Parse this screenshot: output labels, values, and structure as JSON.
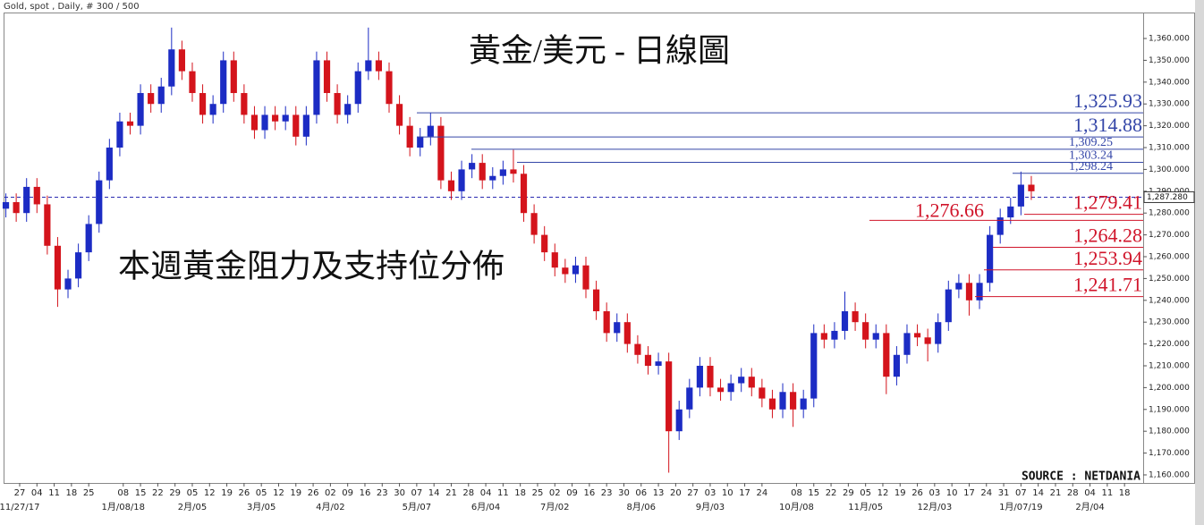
{
  "chart_data": {
    "type": "candlestick",
    "header": "Gold, spot , Daily, # 300 / 500",
    "title": "黃金/美元 - 日線圖",
    "subtitle": "本週黃金阻力及支持位分佈",
    "source": "SOURCE : NETDANIA",
    "up_color": "#1c2cc4",
    "down_color": "#d4141c",
    "x": [
      0,
      3,
      6,
      9,
      12,
      15,
      18,
      21,
      24,
      27,
      30,
      33,
      36,
      39,
      42,
      45,
      48,
      51,
      54,
      57,
      60,
      63,
      66,
      69,
      72,
      75,
      78,
      81,
      84,
      87,
      90,
      93,
      96,
      99,
      102,
      105,
      108,
      111,
      114,
      117,
      120,
      123,
      126,
      129,
      132,
      135,
      138,
      141,
      144,
      147,
      150,
      153,
      156,
      159,
      162,
      165,
      168,
      171,
      174,
      177,
      180,
      183,
      186,
      189,
      192,
      195,
      198,
      201,
      204,
      207,
      210,
      213,
      216,
      219,
      222,
      225,
      228,
      231,
      234,
      237,
      240,
      243,
      246,
      249,
      252,
      255,
      258,
      261,
      264,
      267,
      270,
      273,
      276,
      279,
      282,
      285,
      288,
      291,
      294,
      297
    ],
    "open": [
      1282,
      1285,
      1280,
      1292,
      1284,
      1265,
      1245,
      1250,
      1262,
      1275,
      1295,
      1310,
      1322,
      1320,
      1335,
      1330,
      1338,
      1355,
      1345,
      1335,
      1325,
      1330,
      1350,
      1335,
      1325,
      1318,
      1325,
      1322,
      1325,
      1315,
      1325,
      1350,
      1335,
      1325,
      1330,
      1345,
      1350,
      1345,
      1330,
      1320,
      1310,
      1315,
      1320,
      1295,
      1290,
      1300,
      1303,
      1295,
      1297,
      1300,
      1298,
      1280,
      1270,
      1262,
      1255,
      1252,
      1256,
      1245,
      1235,
      1225,
      1230,
      1220,
      1215,
      1210,
      1212,
      1180,
      1190,
      1200,
      1210,
      1200,
      1198,
      1202,
      1205,
      1200,
      1195,
      1190,
      1198,
      1190,
      1195,
      1225,
      1222,
      1226,
      1235,
      1230,
      1222,
      1225,
      1205,
      1215,
      1225,
      1223,
      1220,
      1230,
      1245,
      1248,
      1240,
      1248,
      1270,
      1278,
      1283,
      1293
    ],
    "high": [
      1289,
      1289,
      1296,
      1296,
      1288,
      1269,
      1254,
      1266,
      1279,
      1299,
      1314,
      1326,
      1326,
      1339,
      1339,
      1342,
      1365,
      1359,
      1349,
      1339,
      1334,
      1354,
      1354,
      1339,
      1329,
      1329,
      1329,
      1329,
      1329,
      1329,
      1354,
      1354,
      1339,
      1334,
      1349,
      1365,
      1354,
      1349,
      1334,
      1324,
      1319,
      1326,
      1324,
      1299,
      1304,
      1307,
      1307,
      1301,
      1304,
      1309,
      1302,
      1284,
      1274,
      1266,
      1259,
      1260,
      1260,
      1249,
      1239,
      1234,
      1234,
      1224,
      1219,
      1216,
      1216,
      1194,
      1204,
      1214,
      1214,
      1204,
      1206,
      1209,
      1209,
      1204,
      1199,
      1202,
      1202,
      1199,
      1229,
      1229,
      1230,
      1244,
      1239,
      1234,
      1229,
      1229,
      1219,
      1229,
      1229,
      1227,
      1234,
      1249,
      1252,
      1252,
      1252,
      1274,
      1282,
      1287,
      1299,
      1297
    ],
    "low": [
      1278,
      1276,
      1276,
      1280,
      1261,
      1237,
      1241,
      1246,
      1258,
      1271,
      1291,
      1306,
      1316,
      1316,
      1326,
      1326,
      1334,
      1341,
      1331,
      1321,
      1321,
      1326,
      1331,
      1321,
      1314,
      1314,
      1318,
      1318,
      1311,
      1311,
      1321,
      1331,
      1321,
      1321,
      1326,
      1341,
      1341,
      1326,
      1316,
      1306,
      1306,
      1311,
      1291,
      1286,
      1286,
      1296,
      1291,
      1291,
      1293,
      1294,
      1276,
      1266,
      1258,
      1251,
      1248,
      1248,
      1241,
      1231,
      1221,
      1221,
      1216,
      1211,
      1206,
      1206,
      1161,
      1176,
      1186,
      1196,
      1196,
      1194,
      1194,
      1198,
      1196,
      1191,
      1186,
      1186,
      1182,
      1186,
      1191,
      1218,
      1218,
      1222,
      1226,
      1218,
      1218,
      1197,
      1201,
      1211,
      1219,
      1212,
      1216,
      1226,
      1241,
      1233,
      1236,
      1244,
      1266,
      1275,
      1279,
      1286
    ],
    "close": [
      1285,
      1280,
      1292,
      1284,
      1265,
      1245,
      1250,
      1262,
      1275,
      1295,
      1310,
      1322,
      1320,
      1335,
      1330,
      1338,
      1355,
      1345,
      1335,
      1325,
      1330,
      1350,
      1335,
      1325,
      1318,
      1325,
      1322,
      1325,
      1315,
      1325,
      1350,
      1335,
      1325,
      1330,
      1345,
      1350,
      1345,
      1330,
      1320,
      1310,
      1315,
      1320,
      1295,
      1290,
      1300,
      1303,
      1295,
      1297,
      1300,
      1298,
      1280,
      1270,
      1262,
      1255,
      1252,
      1256,
      1245,
      1235,
      1225,
      1230,
      1220,
      1215,
      1210,
      1212,
      1180,
      1190,
      1200,
      1210,
      1200,
      1198,
      1202,
      1205,
      1200,
      1195,
      1190,
      1198,
      1190,
      1195,
      1225,
      1222,
      1226,
      1235,
      1230,
      1222,
      1225,
      1205,
      1215,
      1225,
      1223,
      1220,
      1230,
      1245,
      1248,
      1240,
      1248,
      1270,
      1278,
      1283,
      1293,
      1290
    ],
    "xlim": [
      -0.4,
      329.4
    ],
    "ylim": [
      1156.3,
      1371.9
    ],
    "yticks": [
      {
        "value": 1160,
        "label": "1,160.000"
      },
      {
        "value": 1170,
        "label": "1,170.000"
      },
      {
        "value": 1180,
        "label": "1,180.000"
      },
      {
        "value": 1190,
        "label": "1,190.000"
      },
      {
        "value": 1200,
        "label": "1,200.000"
      },
      {
        "value": 1210,
        "label": "1,210.000"
      },
      {
        "value": 1220,
        "label": "1,220.000"
      },
      {
        "value": 1230,
        "label": "1,230.000"
      },
      {
        "value": 1240,
        "label": "1,240.000"
      },
      {
        "value": 1250,
        "label": "1,250.000"
      },
      {
        "value": 1260,
        "label": "1,260.000"
      },
      {
        "value": 1270,
        "label": "1,270.000"
      },
      {
        "value": 1280,
        "label": "1,280.000"
      },
      {
        "value": 1290,
        "label": "1,290.000"
      },
      {
        "value": 1300,
        "label": "1,300.000"
      },
      {
        "value": 1310,
        "label": "1,310.000"
      },
      {
        "value": 1320,
        "label": "1,320.000"
      },
      {
        "value": 1330,
        "label": "1,330.000"
      },
      {
        "value": 1340,
        "label": "1,340.000"
      },
      {
        "value": 1350,
        "label": "1,350.000"
      },
      {
        "value": 1360,
        "label": "1,360.000"
      }
    ],
    "xticks": [
      {
        "value": 4,
        "label": "27"
      },
      {
        "value": 9,
        "label": "04"
      },
      {
        "value": 14,
        "label": "11"
      },
      {
        "value": 19,
        "label": "18"
      },
      {
        "value": 24,
        "label": "25"
      },
      {
        "value": 34,
        "label": "08"
      },
      {
        "value": 39,
        "label": "15"
      },
      {
        "value": 44,
        "label": "22"
      },
      {
        "value": 49,
        "label": "29"
      },
      {
        "value": 54,
        "label": "05"
      },
      {
        "value": 59,
        "label": "12"
      },
      {
        "value": 64,
        "label": "19"
      },
      {
        "value": 69,
        "label": "26"
      },
      {
        "value": 74,
        "label": "05"
      },
      {
        "value": 79,
        "label": "12"
      },
      {
        "value": 84,
        "label": "19"
      },
      {
        "value": 89,
        "label": "26"
      },
      {
        "value": 94,
        "label": "02"
      },
      {
        "value": 99,
        "label": "09"
      },
      {
        "value": 104,
        "label": "16"
      },
      {
        "value": 109,
        "label": "23"
      },
      {
        "value": 114,
        "label": "30"
      },
      {
        "value": 119,
        "label": "07"
      },
      {
        "value": 124,
        "label": "14"
      },
      {
        "value": 129,
        "label": "21"
      },
      {
        "value": 134,
        "label": "28"
      },
      {
        "value": 139,
        "label": "04"
      },
      {
        "value": 144,
        "label": "11"
      },
      {
        "value": 149,
        "label": "18"
      },
      {
        "value": 154,
        "label": "25"
      },
      {
        "value": 159,
        "label": "02"
      },
      {
        "value": 164,
        "label": "09"
      },
      {
        "value": 169,
        "label": "16"
      },
      {
        "value": 174,
        "label": "23"
      },
      {
        "value": 179,
        "label": "30"
      },
      {
        "value": 184,
        "label": "06"
      },
      {
        "value": 189,
        "label": "13"
      },
      {
        "value": 194,
        "label": "20"
      },
      {
        "value": 199,
        "label": "27"
      },
      {
        "value": 204,
        "label": "03"
      },
      {
        "value": 209,
        "label": "10"
      },
      {
        "value": 214,
        "label": "17"
      },
      {
        "value": 219,
        "label": "24"
      },
      {
        "value": 229,
        "label": "08"
      },
      {
        "value": 234,
        "label": "15"
      },
      {
        "value": 239,
        "label": "22"
      },
      {
        "value": 244,
        "label": "29"
      },
      {
        "value": 249,
        "label": "05"
      },
      {
        "value": 254,
        "label": "12"
      },
      {
        "value": 259,
        "label": "19"
      },
      {
        "value": 264,
        "label": "26"
      },
      {
        "value": 269,
        "label": "03"
      },
      {
        "value": 274,
        "label": "10"
      },
      {
        "value": 279,
        "label": "17"
      },
      {
        "value": 284,
        "label": "24"
      },
      {
        "value": 289,
        "label": "31"
      },
      {
        "value": 294,
        "label": "07"
      },
      {
        "value": 299,
        "label": "14"
      },
      {
        "value": 304,
        "label": "21"
      },
      {
        "value": 309,
        "label": "28"
      },
      {
        "value": 314,
        "label": "04"
      },
      {
        "value": 319,
        "label": "11"
      },
      {
        "value": 324,
        "label": "18"
      }
    ],
    "month_labels": [
      {
        "value": 4,
        "label": "11/27/17"
      },
      {
        "value": 34,
        "label": "1月/08/18"
      },
      {
        "value": 54,
        "label": "2月/05"
      },
      {
        "value": 74,
        "label": "3月/05"
      },
      {
        "value": 94,
        "label": "4月/02"
      },
      {
        "value": 119,
        "label": "5月/07"
      },
      {
        "value": 139,
        "label": "6月/04"
      },
      {
        "value": 159,
        "label": "7月/02"
      },
      {
        "value": 184,
        "label": "8月/06"
      },
      {
        "value": 204,
        "label": "9月/03"
      },
      {
        "value": 229,
        "label": "10月/08"
      },
      {
        "value": 249,
        "label": "11月/05"
      },
      {
        "value": 269,
        "label": "12月/03"
      },
      {
        "value": 294,
        "label": "1月/07/19"
      },
      {
        "value": 314,
        "label": "2月/04"
      }
    ],
    "resistance": {
      "color": "#3446a8",
      "values": [
        1325.93,
        1314.88,
        1309.25,
        1303.24,
        1298.24
      ],
      "value_labels": [
        "1,325.93",
        "1,314.88",
        "1,309.25",
        "1,303.24",
        "1,298.24"
      ]
    },
    "support": {
      "color": "#d0142a",
      "values": [
        1279.41,
        1276.66,
        1264.28,
        1253.94,
        1241.71
      ],
      "value_labels": [
        "1,279.41",
        "1,276.66",
        "1,264.28",
        "1,253.94",
        "1,241.71"
      ]
    },
    "current": {
      "value": 1287.28,
      "label": "1,287.280",
      "color": "#2a2ab0"
    }
  }
}
